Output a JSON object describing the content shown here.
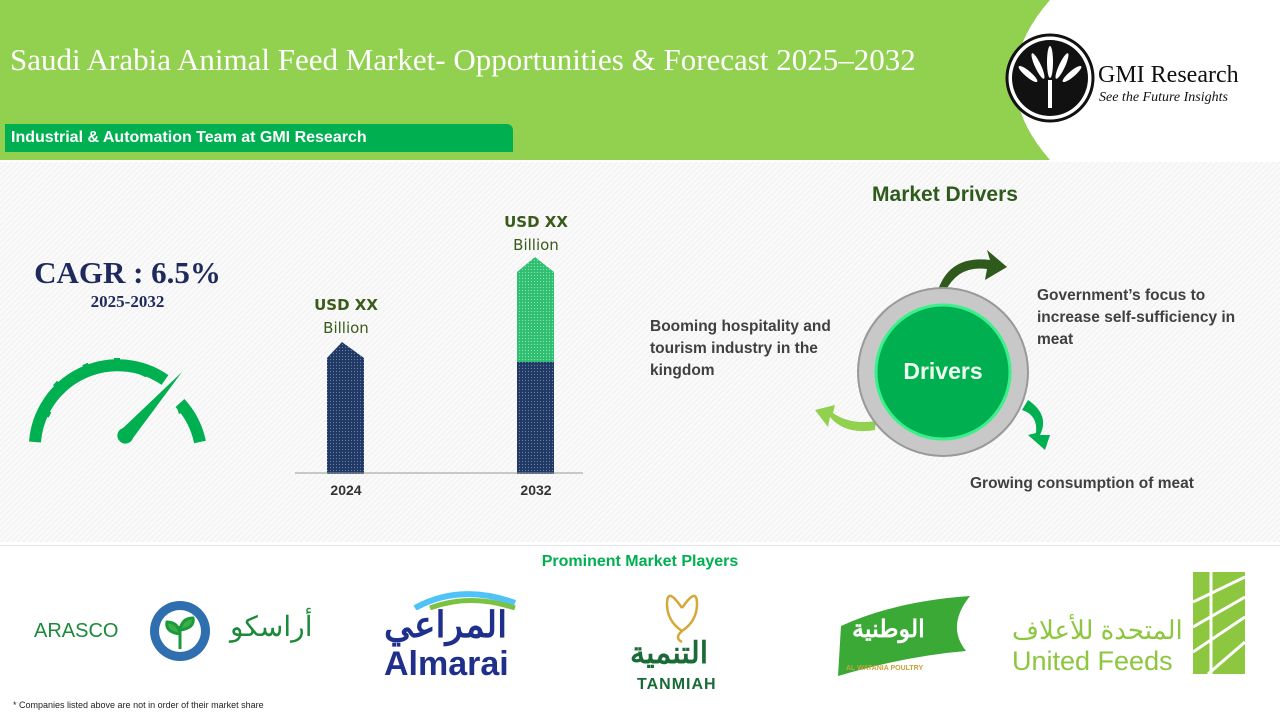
{
  "header": {
    "title": "Saudi Arabia Animal Feed Market- Opportunities & Forecast 2025–2032",
    "team": "Industrial & Automation Team at GMI Research",
    "brand": "GMI Research",
    "tagline": "See the Future Insights"
  },
  "cagr": {
    "label": "CAGR : 6.5%",
    "period": "2025-2032",
    "gauge_icon": "speedometer-icon",
    "color": "#00b050"
  },
  "market_size": {
    "bars": [
      {
        "year": "2024",
        "value_line1": "USD XX",
        "value_line2": "Billion"
      },
      {
        "year": "2032",
        "value_line1": "USD XX",
        "value_line2": "Billion"
      }
    ],
    "colors": {
      "base": "#1f3864",
      "growth": "#2fbf71"
    }
  },
  "drivers": {
    "title": "Market Drivers",
    "center": "Drivers",
    "items": [
      "Government’s focus to increase self-sufficiency in meat",
      "Growing consumption of meat",
      "Booming hospitality and tourism industry in the kingdom"
    ]
  },
  "players": {
    "title": "Prominent Market Players",
    "logos": [
      {
        "name": "ARASCO",
        "arabic": "أراسكو"
      },
      {
        "name": "Almarai",
        "arabic": "المراعي"
      },
      {
        "name": "TANMIAH",
        "arabic": "التنمية"
      },
      {
        "name": "AL WATANIA POULTRY",
        "arabic": "الوطنية"
      },
      {
        "name": "United Feeds",
        "arabic": "المتحدة للأعلاف"
      }
    ],
    "footnote": "* Companies listed above are not in order of their market share"
  }
}
